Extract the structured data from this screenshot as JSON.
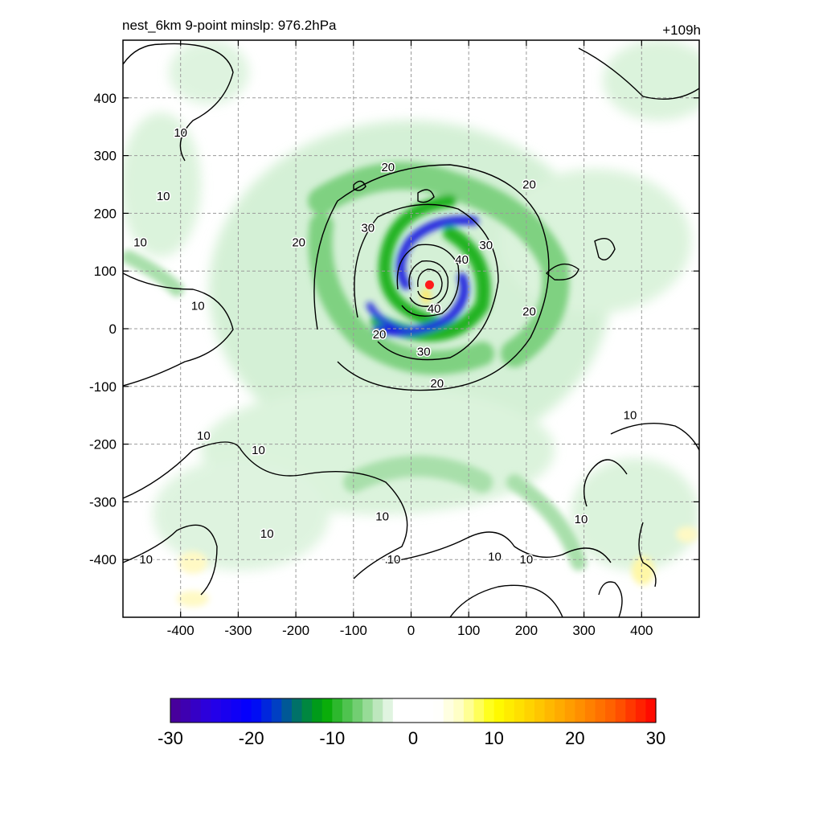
{
  "header": {
    "left_title": "nest_6km  9-point minslp: 976.2hPa",
    "right_title": "+109h"
  },
  "chart_data": {
    "type": "heatmap",
    "title": "nest_6km  9-point minslp: 976.2hPa",
    "lead_time": "+109h",
    "xlabel": "",
    "ylabel": "",
    "xlim": [
      -500,
      500
    ],
    "ylim": [
      -500,
      500
    ],
    "x_ticks": [
      -400,
      -300,
      -200,
      -100,
      0,
      100,
      200,
      300,
      400
    ],
    "y_ticks": [
      -400,
      -300,
      -200,
      -100,
      0,
      100,
      200,
      300,
      400
    ],
    "x_tick_labels": [
      "-400",
      "-300",
      "-200",
      "-100",
      "0",
      "100",
      "200",
      "300",
      "400"
    ],
    "y_tick_labels": [
      "-400",
      "-300",
      "-200",
      "-100",
      "0",
      "100",
      "200",
      "300",
      "400"
    ],
    "grid": true,
    "center_marker": {
      "x": 32,
      "y": 76,
      "color": "#ff1a1a"
    },
    "contour_levels": [
      10,
      20,
      30,
      40
    ],
    "contour_labels": [
      {
        "text": "10",
        "x": -400,
        "y": 340
      },
      {
        "text": "10",
        "x": -430,
        "y": 230
      },
      {
        "text": "10",
        "x": -470,
        "y": 150
      },
      {
        "text": "10",
        "x": -370,
        "y": 40
      },
      {
        "text": "10",
        "x": -360,
        "y": -185
      },
      {
        "text": "10",
        "x": -265,
        "y": -210
      },
      {
        "text": "10",
        "x": -250,
        "y": -355
      },
      {
        "text": "10",
        "x": -460,
        "y": -400
      },
      {
        "text": "10",
        "x": -50,
        "y": -325
      },
      {
        "text": "10",
        "x": -30,
        "y": -400
      },
      {
        "text": "10",
        "x": 145,
        "y": -395
      },
      {
        "text": "10",
        "x": 200,
        "y": -400
      },
      {
        "text": "10",
        "x": 295,
        "y": -330
      },
      {
        "text": "10",
        "x": 380,
        "y": -150
      },
      {
        "text": "20",
        "x": -195,
        "y": 150
      },
      {
        "text": "20",
        "x": -40,
        "y": 280
      },
      {
        "text": "20",
        "x": 205,
        "y": 250
      },
      {
        "text": "20",
        "x": 205,
        "y": 30
      },
      {
        "text": "20",
        "x": -55,
        "y": -10
      },
      {
        "text": "20",
        "x": 45,
        "y": -95
      },
      {
        "text": "30",
        "x": -75,
        "y": 175
      },
      {
        "text": "30",
        "x": 130,
        "y": 145
      },
      {
        "text": "30",
        "x": 22,
        "y": -40
      },
      {
        "text": "40",
        "x": 88,
        "y": 120
      },
      {
        "text": "40",
        "x": 40,
        "y": 35
      }
    ],
    "colorbar": {
      "min": -30,
      "max": 30,
      "tick_values": [
        -30,
        -20,
        -10,
        0,
        10,
        20,
        30
      ],
      "tick_labels": [
        "-30",
        "-20",
        "-10",
        "0",
        "10",
        "20",
        "30"
      ]
    }
  }
}
